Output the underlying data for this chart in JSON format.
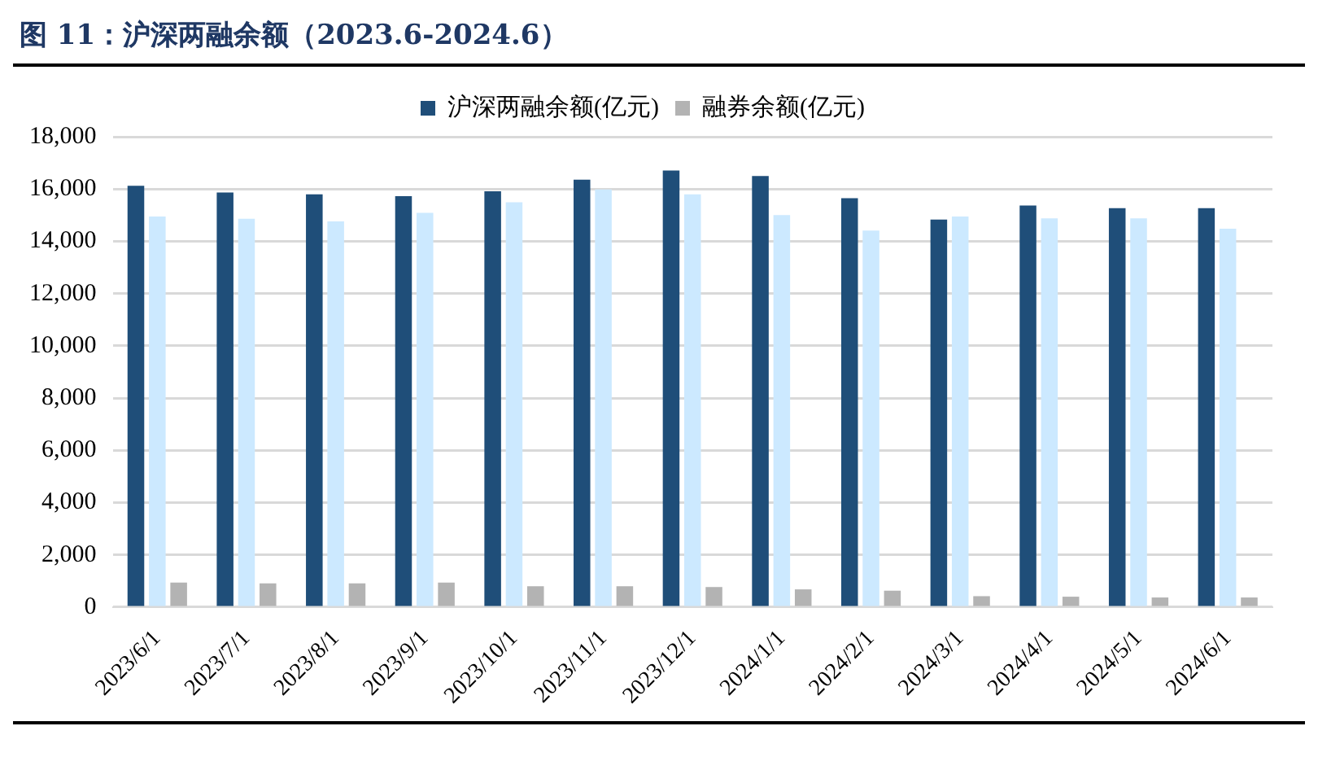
{
  "chart_data": {
    "type": "bar",
    "title": "图 11：沪深两融余额（2023.6-2024.6）",
    "categories": [
      "2023/6/1",
      "2023/7/1",
      "2023/8/1",
      "2023/9/1",
      "2023/10/1",
      "2023/11/1",
      "2023/12/1",
      "2024/1/1",
      "2024/2/1",
      "2024/3/1",
      "2024/4/1",
      "2024/5/1",
      "2024/6/1"
    ],
    "series": [
      {
        "name": "沪深两融余额(亿元)",
        "color": "#1f4e79",
        "values": [
          16120,
          15870,
          15800,
          15730,
          15910,
          16360,
          16710,
          16500,
          15650,
          14830,
          15370,
          15270,
          15270
        ]
      },
      {
        "color": "#cce9ff",
        "values": [
          14950,
          14860,
          14760,
          15090,
          15490,
          15980,
          15800,
          15000,
          14410,
          14950,
          14880,
          14880,
          14480
        ]
      },
      {
        "name": "融券余额(亿元)",
        "color": "#b3b3b3",
        "values": [
          940,
          910,
          910,
          940,
          800,
          800,
          770,
          680,
          630,
          420,
          400,
          370,
          370
        ]
      }
    ],
    "ylim": [
      0,
      18000
    ],
    "yticks": [
      0,
      {
        "value": 2000,
        "label": "2,000"
      },
      {
        "value": 4000,
        "label": "4,000"
      },
      {
        "value": 6000,
        "label": "6,000"
      },
      {
        "value": 8000,
        "label": "8,000"
      },
      {
        "value": 10000,
        "label": "10,000"
      },
      {
        "value": 12000,
        "label": "12,000"
      },
      {
        "value": 14000,
        "label": "14,000"
      },
      {
        "value": 16000,
        "label": "16,000"
      },
      {
        "value": 18000,
        "label": "18,000"
      }
    ],
    "grid": "y",
    "legend": "top"
  }
}
